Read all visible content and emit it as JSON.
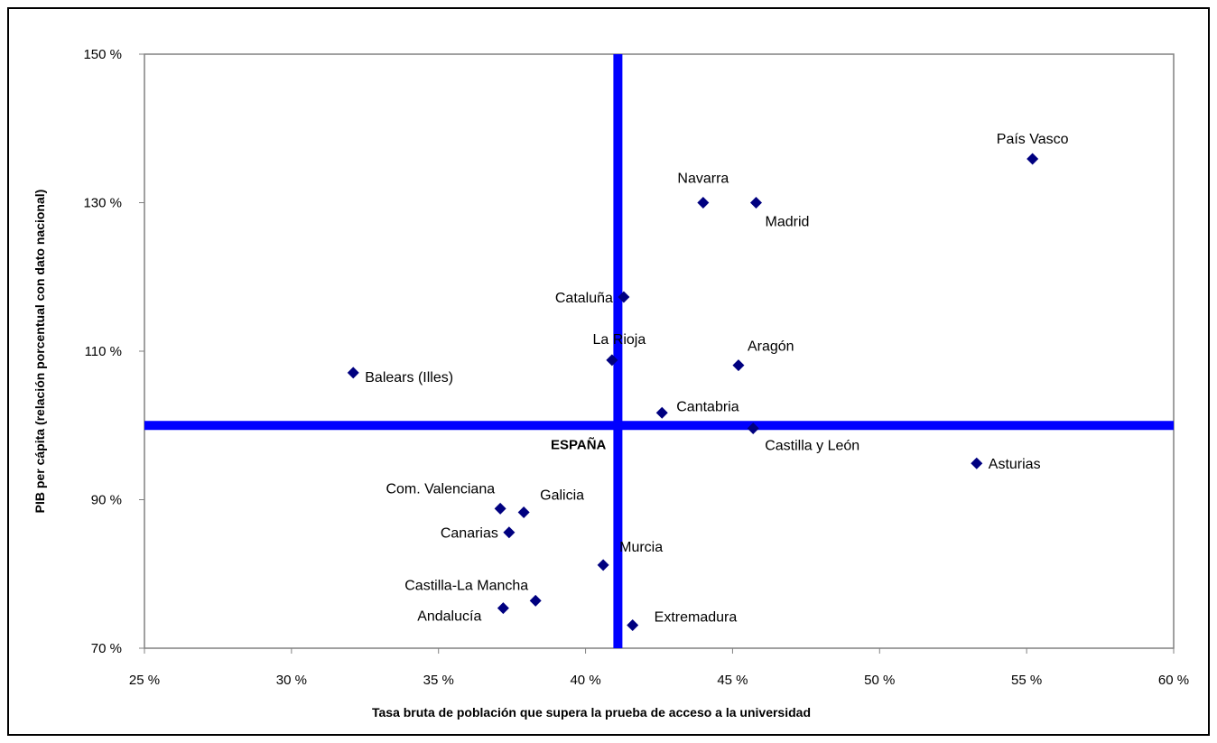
{
  "chart_data": {
    "type": "scatter",
    "xlabel": "Tasa bruta de población que supera la prueba de acceso a la universidad",
    "ylabel": "PIB per cápita (relación porcentual con dato nacional)",
    "xlim": [
      25,
      60
    ],
    "ylim": [
      70,
      150
    ],
    "x_ticks": [
      25,
      30,
      35,
      40,
      45,
      50,
      55,
      60
    ],
    "x_tick_labels": [
      "25 %",
      "30 %",
      "35 %",
      "40 %",
      "45 %",
      "50 %",
      "55 %",
      "60 %"
    ],
    "y_ticks": [
      70,
      90,
      110,
      130,
      150
    ],
    "y_tick_labels": [
      "70 %",
      "90 %",
      "110 %",
      "130 %",
      "150 %"
    ],
    "grid": false,
    "legend": "none",
    "marker_color": "#000080",
    "reference_color": "#0000ff",
    "reference": {
      "label": "ESPAÑA",
      "x": 41.1,
      "y": 100
    },
    "points": [
      {
        "name": "País Vasco",
        "x": 55.2,
        "y": 135.9
      },
      {
        "name": "Navarra",
        "x": 44.0,
        "y": 130.0
      },
      {
        "name": "Madrid",
        "x": 45.8,
        "y": 130.0
      },
      {
        "name": "Cataluña",
        "x": 41.3,
        "y": 117.3
      },
      {
        "name": "La Rioja",
        "x": 40.9,
        "y": 108.8
      },
      {
        "name": "Aragón",
        "x": 45.2,
        "y": 108.1
      },
      {
        "name": "Balears (Illes)",
        "x": 32.1,
        "y": 107.1
      },
      {
        "name": "Cantabria",
        "x": 42.6,
        "y": 101.7
      },
      {
        "name": "Castilla y León",
        "x": 45.7,
        "y": 99.6
      },
      {
        "name": "Asturias",
        "x": 53.3,
        "y": 94.9
      },
      {
        "name": "Com. Valenciana",
        "x": 37.1,
        "y": 88.8
      },
      {
        "name": "Galicia",
        "x": 37.9,
        "y": 88.3
      },
      {
        "name": "Canarias",
        "x": 37.4,
        "y": 85.6
      },
      {
        "name": "Murcia",
        "x": 40.6,
        "y": 81.2
      },
      {
        "name": "Castilla-La Mancha",
        "x": 38.3,
        "y": 76.4
      },
      {
        "name": "Andalucía",
        "x": 37.2,
        "y": 75.4
      },
      {
        "name": "Extremadura",
        "x": 41.6,
        "y": 73.1
      }
    ]
  }
}
